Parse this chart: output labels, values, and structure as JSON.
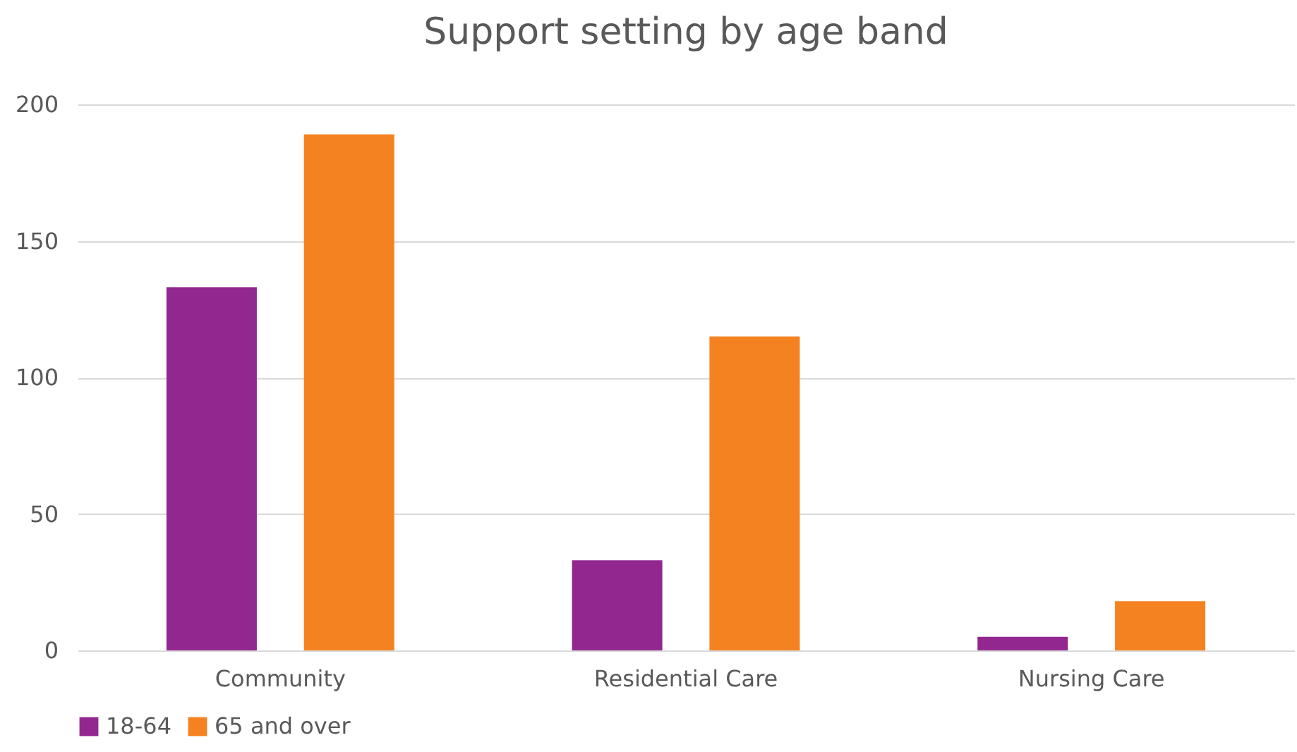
{
  "chart_data": {
    "type": "bar",
    "title": "Support setting by age band",
    "categories": [
      "Community",
      "Residential Care",
      "Nursing Care"
    ],
    "series": [
      {
        "name": "18-64",
        "color": "#92278f",
        "values": [
          133,
          33,
          5
        ]
      },
      {
        "name": "65 and over",
        "color": "#f58220",
        "values": [
          189,
          115,
          18
        ]
      }
    ],
    "ylim": [
      0,
      200
    ],
    "yticks": [
      0,
      50,
      100,
      150,
      200
    ],
    "grid": "y",
    "legend": "bottom"
  }
}
